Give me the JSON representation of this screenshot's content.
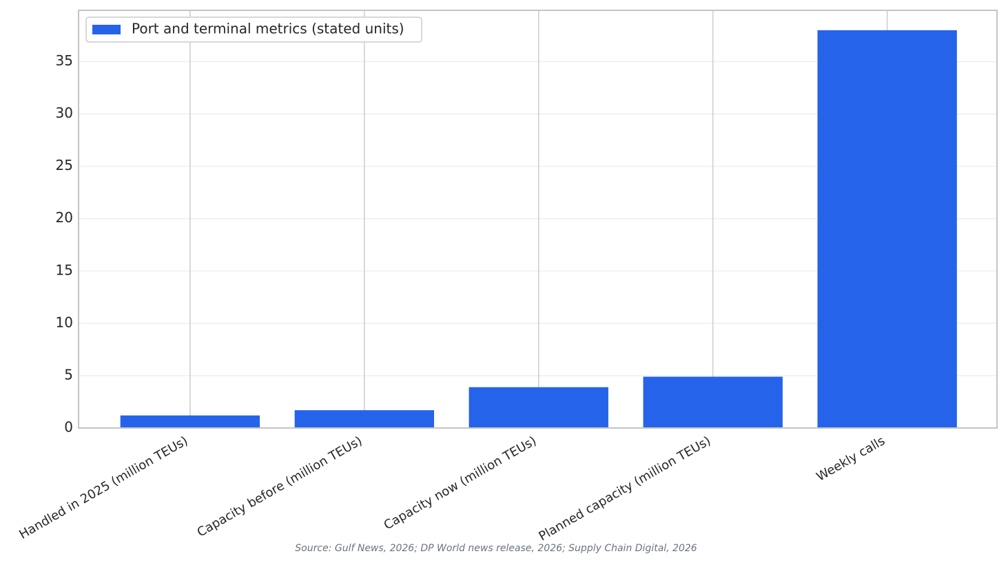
{
  "chart_data": {
    "type": "bar",
    "categories": [
      "Handled in 2025 (million TEUs)",
      "Capacity before (million TEUs)",
      "Capacity now (million TEUs)",
      "Planned capacity (million TEUs)",
      "Weekly calls"
    ],
    "series": [
      {
        "name": "Port and terminal metrics (stated units)",
        "color": "#2563eb",
        "values": [
          1.2,
          1.7,
          3.9,
          4.9,
          38
        ]
      }
    ],
    "ylim": [
      0,
      39.9
    ],
    "yticks": [
      0,
      5,
      10,
      15,
      20,
      25,
      30,
      35
    ],
    "grid": true,
    "legend": "upper left",
    "source": "Source: Gulf News, 2026; DP World news release, 2026; Supply Chain Digital, 2026"
  }
}
